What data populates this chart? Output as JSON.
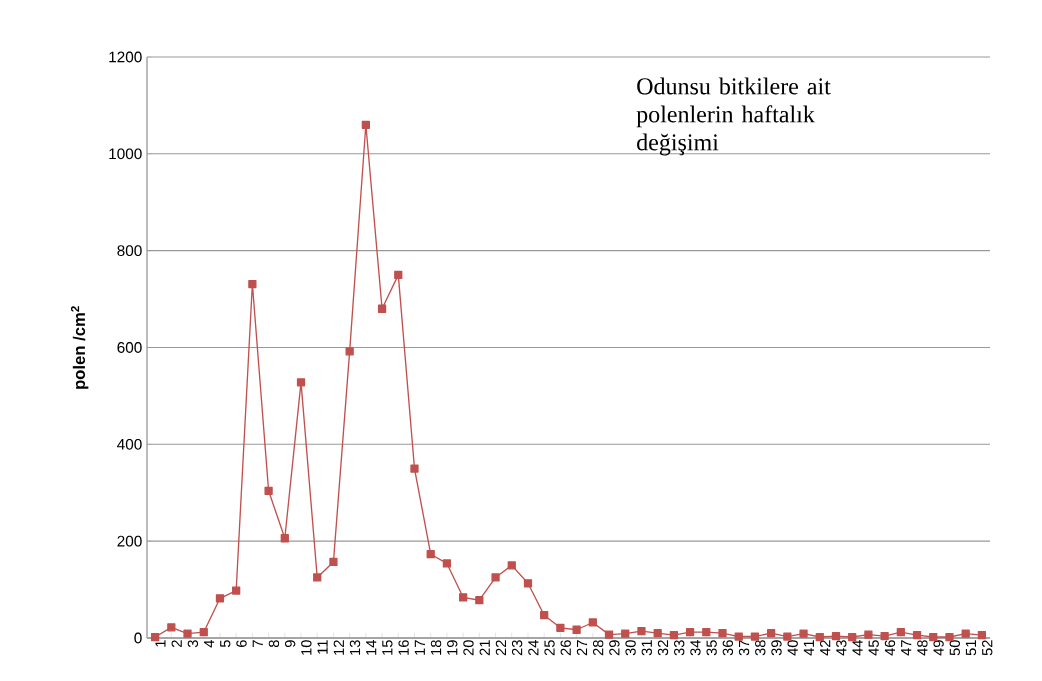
{
  "chart_data": {
    "type": "line",
    "ylabel": "polen /cm$^{2}$",
    "annotations": [
      "Odunsu bitkilere ait polenlerin haftalık değişimi"
    ],
    "categories": [
      "1",
      "2",
      "3",
      "4",
      "5",
      "6",
      "7",
      "8",
      "9",
      "10",
      "11",
      "12",
      "13",
      "14",
      "15",
      "16",
      "17",
      "18",
      "19",
      "20",
      "21",
      "22",
      "23",
      "24",
      "25",
      "26",
      "27",
      "28",
      "29",
      "30",
      "31",
      "32",
      "33",
      "34",
      "35",
      "36",
      "37",
      "38",
      "39",
      "40",
      "41",
      "42",
      "43",
      "44",
      "45",
      "46",
      "47",
      "48",
      "49",
      "50",
      "51",
      "52"
    ],
    "series": [
      {
        "color": "#c0504d",
        "values": [
          2,
          22,
          9,
          12,
          82,
          98,
          731,
          304,
          206,
          528,
          125,
          157,
          592,
          1060,
          680,
          750,
          350,
          173,
          154,
          84,
          78,
          125,
          150,
          113,
          47,
          21,
          17,
          32,
          7,
          9,
          14,
          10,
          6,
          12,
          12,
          10,
          3,
          3,
          10,
          3,
          9,
          2,
          4,
          2,
          7,
          4,
          12,
          6,
          2,
          2,
          9,
          6
        ]
      }
    ],
    "ylim": [
      0,
      1200
    ],
    "yticks": [
      0,
      200,
      400,
      600,
      800,
      1000,
      1200
    ],
    "grid": "y",
    "marker": "square",
    "line_style": "solid"
  }
}
